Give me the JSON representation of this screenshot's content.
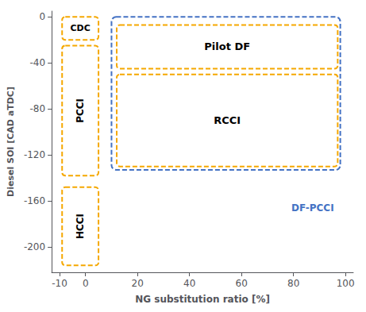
{
  "chart_data": {
    "type": "region",
    "xlabel": "NG substitution ratio [%]",
    "ylabel": "Diesel SOI [CAD aTDC]",
    "xlim": [
      -13,
      103
    ],
    "ylim": [
      -222,
      5
    ],
    "xticks": [
      -10,
      0,
      20,
      40,
      60,
      80,
      100
    ],
    "yticks": [
      0,
      -40,
      -80,
      -120,
      -160,
      -200
    ],
    "grid": false,
    "line_style": "dashed",
    "series": [
      {
        "name": "DF-PCCI",
        "color": "#4472C4",
        "x": 10,
        "y": -133,
        "w": 88,
        "h": 133
      },
      {
        "name": "CDC",
        "color": "#F5A800",
        "x": -9,
        "y": -20,
        "w": 14,
        "h": 20
      },
      {
        "name": "PCCI",
        "color": "#F5A800",
        "x": -9,
        "y": -138,
        "w": 14,
        "h": 113
      },
      {
        "name": "HCCI",
        "color": "#F5A800",
        "x": -9,
        "y": -216,
        "w": 14,
        "h": 68
      },
      {
        "name": "Pilot DF",
        "color": "#F5A800",
        "x": 12,
        "y": -45,
        "w": 85,
        "h": 38
      },
      {
        "name": "RCCI",
        "color": "#F5A800",
        "x": 12,
        "y": -130,
        "w": 85,
        "h": 80
      }
    ]
  }
}
